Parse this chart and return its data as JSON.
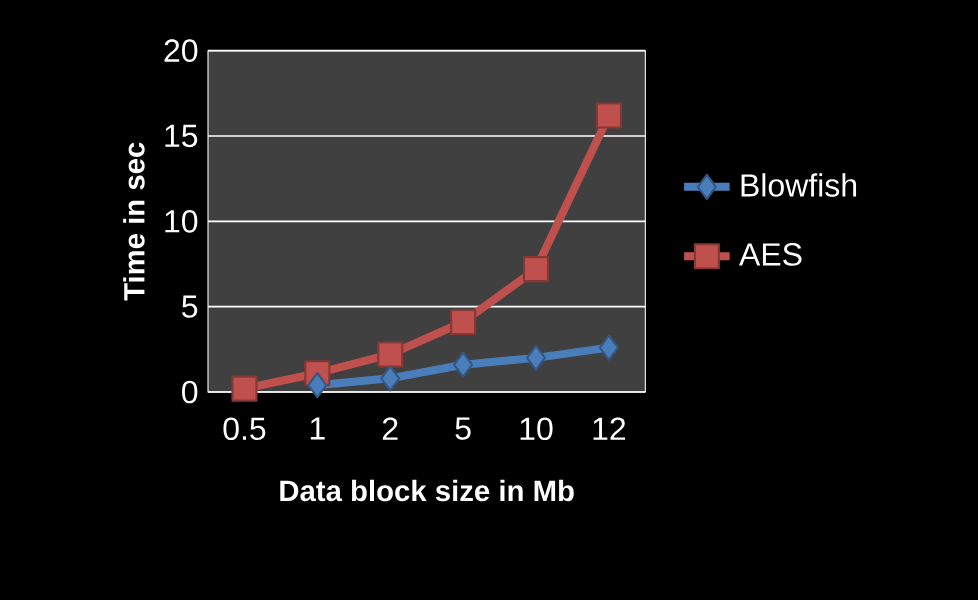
{
  "chart_data": {
    "type": "line",
    "xlabel": "Data block size in Mb",
    "ylabel": "Time in sec",
    "categories": [
      "0.5",
      "1",
      "2",
      "5",
      "10",
      "12"
    ],
    "series": [
      {
        "name": "Blowfish",
        "color": "#4a7ebb",
        "marker": "diamond",
        "values": [
          null,
          0.4,
          0.8,
          1.6,
          2.0,
          2.6
        ]
      },
      {
        "name": "AES",
        "color": "#c0504d",
        "marker": "square",
        "values": [
          0.2,
          1.1,
          2.2,
          4.1,
          7.2,
          16.2
        ]
      }
    ],
    "ylim": [
      0,
      20
    ],
    "yticks": [
      0,
      5,
      10,
      15,
      20
    ],
    "grid": "y",
    "legend": "right",
    "line_style": "solid"
  }
}
